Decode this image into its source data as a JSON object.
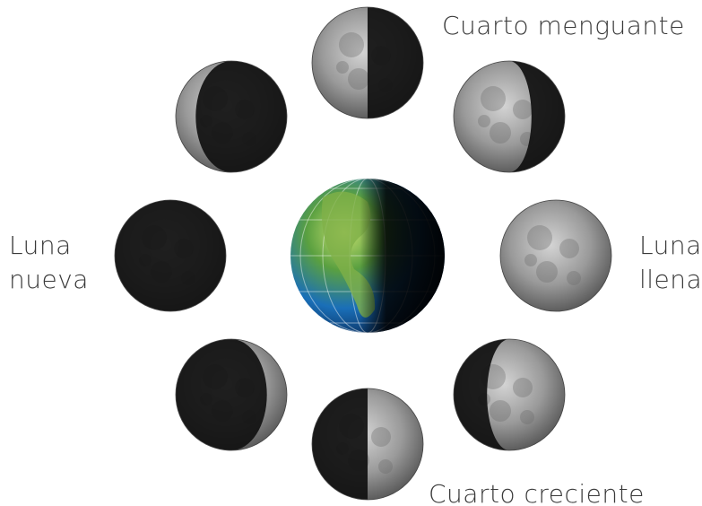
{
  "labels": {
    "cuarto_menguante": "Cuarto menguante",
    "luna_nueva": [
      "Luna",
      "nueva"
    ],
    "luna_llena": [
      "Luna",
      "llena"
    ],
    "cuarto_creciente": "Cuarto creciente"
  }
}
